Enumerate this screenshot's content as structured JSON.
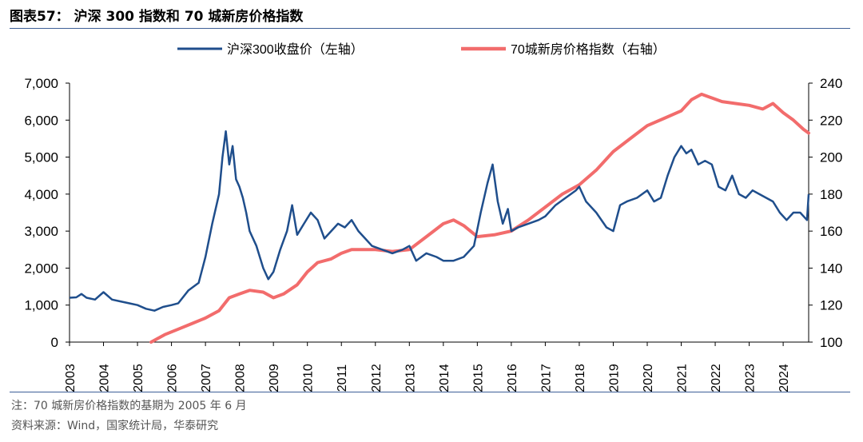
{
  "header": {
    "title": "图表57：  沪深 300 指数和 70 城新房价格指数"
  },
  "footer": {
    "note": "注：70 城新房价格指数的基期为 2005 年 6 月",
    "source": "资料来源：Wind，国家统计局，华泰研究"
  },
  "colors": {
    "series1": "#1f4e8c",
    "series2": "#f26c6c",
    "rule": "#3d5f97"
  },
  "chart_data": {
    "type": "line",
    "title": "沪深 300 指数和 70 城新房价格指数",
    "x_tick_labels": [
      "2003",
      "2004",
      "2005",
      "2006",
      "2007",
      "2008",
      "2009",
      "2010",
      "2011",
      "2012",
      "2013",
      "2014",
      "2015",
      "2016",
      "2017",
      "2018",
      "2019",
      "2020",
      "2021",
      "2022",
      "2023",
      "2024"
    ],
    "y_left": {
      "ylim": [
        0,
        7000
      ],
      "ticks": [
        0,
        1000,
        2000,
        3000,
        4000,
        5000,
        6000,
        7000
      ],
      "tick_labels": [
        "0",
        "1,000",
        "2,000",
        "3,000",
        "4,000",
        "5,000",
        "6,000",
        "7,000"
      ]
    },
    "y_right": {
      "ylim": [
        100,
        240
      ],
      "ticks": [
        100,
        120,
        140,
        160,
        180,
        200,
        220,
        240
      ],
      "tick_labels": [
        "100",
        "120",
        "140",
        "160",
        "180",
        "200",
        "220",
        "240"
      ]
    },
    "series": [
      {
        "name": "沪深300收盘价（左轴）",
        "axis": "left",
        "x": [
          2003.0,
          2003.2,
          2003.35,
          2003.5,
          2003.75,
          2004.0,
          2004.25,
          2004.5,
          2004.75,
          2005.0,
          2005.25,
          2005.5,
          2005.75,
          2006.0,
          2006.2,
          2006.5,
          2006.8,
          2007.0,
          2007.2,
          2007.4,
          2007.5,
          2007.6,
          2007.7,
          2007.8,
          2007.9,
          2008.0,
          2008.1,
          2008.2,
          2008.3,
          2008.5,
          2008.7,
          2008.85,
          2009.0,
          2009.2,
          2009.4,
          2009.55,
          2009.7,
          2009.9,
          2010.1,
          2010.3,
          2010.5,
          2010.7,
          2010.9,
          2011.1,
          2011.3,
          2011.5,
          2011.7,
          2011.9,
          2012.2,
          2012.5,
          2012.8,
          2013.0,
          2013.2,
          2013.5,
          2013.8,
          2014.0,
          2014.3,
          2014.6,
          2014.9,
          2015.1,
          2015.3,
          2015.45,
          2015.6,
          2015.75,
          2015.9,
          2016.0,
          2016.2,
          2016.5,
          2016.8,
          2017.0,
          2017.3,
          2017.6,
          2017.9,
          2018.0,
          2018.2,
          2018.5,
          2018.8,
          2019.0,
          2019.2,
          2019.4,
          2019.7,
          2020.0,
          2020.2,
          2020.4,
          2020.6,
          2020.8,
          2021.0,
          2021.15,
          2021.3,
          2021.5,
          2021.7,
          2021.9,
          2022.1,
          2022.3,
          2022.5,
          2022.7,
          2022.9,
          2023.1,
          2023.3,
          2023.5,
          2023.7,
          2023.9,
          2024.1,
          2024.3,
          2024.5,
          2024.7,
          2024.75
        ],
        "values": [
          1200,
          1210,
          1300,
          1200,
          1150,
          1350,
          1150,
          1100,
          1050,
          1000,
          900,
          850,
          950,
          1000,
          1050,
          1400,
          1600,
          2300,
          3200,
          4000,
          5000,
          5700,
          4800,
          5300,
          4400,
          4200,
          3900,
          3500,
          3000,
          2600,
          2000,
          1700,
          1900,
          2500,
          3000,
          3700,
          2900,
          3200,
          3500,
          3300,
          2800,
          3000,
          3200,
          3100,
          3300,
          3000,
          2800,
          2600,
          2500,
          2400,
          2500,
          2600,
          2200,
          2400,
          2300,
          2200,
          2200,
          2300,
          2600,
          3500,
          4300,
          4800,
          3800,
          3200,
          3600,
          3000,
          3100,
          3200,
          3300,
          3400,
          3700,
          3900,
          4100,
          4200,
          3800,
          3500,
          3100,
          3000,
          3700,
          3800,
          3900,
          4100,
          3800,
          3900,
          4500,
          5000,
          5300,
          5100,
          5200,
          4800,
          4900,
          4800,
          4200,
          4100,
          4500,
          4000,
          3900,
          4100,
          4000,
          3900,
          3800,
          3500,
          3300,
          3500,
          3500,
          3300,
          4000
        ]
      },
      {
        "name": "70城新房价格指数（右轴）",
        "axis": "right",
        "x": [
          2005.4,
          2005.8,
          2006.2,
          2006.6,
          2007.0,
          2007.4,
          2007.7,
          2008.0,
          2008.3,
          2008.7,
          2009.0,
          2009.3,
          2009.7,
          2010.0,
          2010.3,
          2010.7,
          2011.0,
          2011.3,
          2011.7,
          2012.0,
          2012.5,
          2013.0,
          2013.5,
          2014.0,
          2014.3,
          2014.6,
          2015.0,
          2015.5,
          2016.0,
          2016.5,
          2017.0,
          2017.5,
          2018.0,
          2018.5,
          2019.0,
          2019.5,
          2020.0,
          2020.5,
          2021.0,
          2021.3,
          2021.6,
          2021.9,
          2022.2,
          2022.6,
          2023.0,
          2023.4,
          2023.7,
          2024.0,
          2024.3,
          2024.6,
          2024.75
        ],
        "values": [
          100,
          104,
          107,
          110,
          113,
          117,
          124,
          126,
          128,
          127,
          124,
          126,
          131,
          138,
          143,
          145,
          148,
          150,
          150,
          150,
          149,
          150,
          157,
          164,
          166,
          163,
          157,
          158,
          160,
          166,
          173,
          180,
          185,
          193,
          203,
          210,
          217,
          221,
          225,
          231,
          234,
          232,
          230,
          229,
          228,
          226,
          229,
          224,
          220,
          215,
          213
        ]
      }
    ],
    "legend": "top-center"
  }
}
